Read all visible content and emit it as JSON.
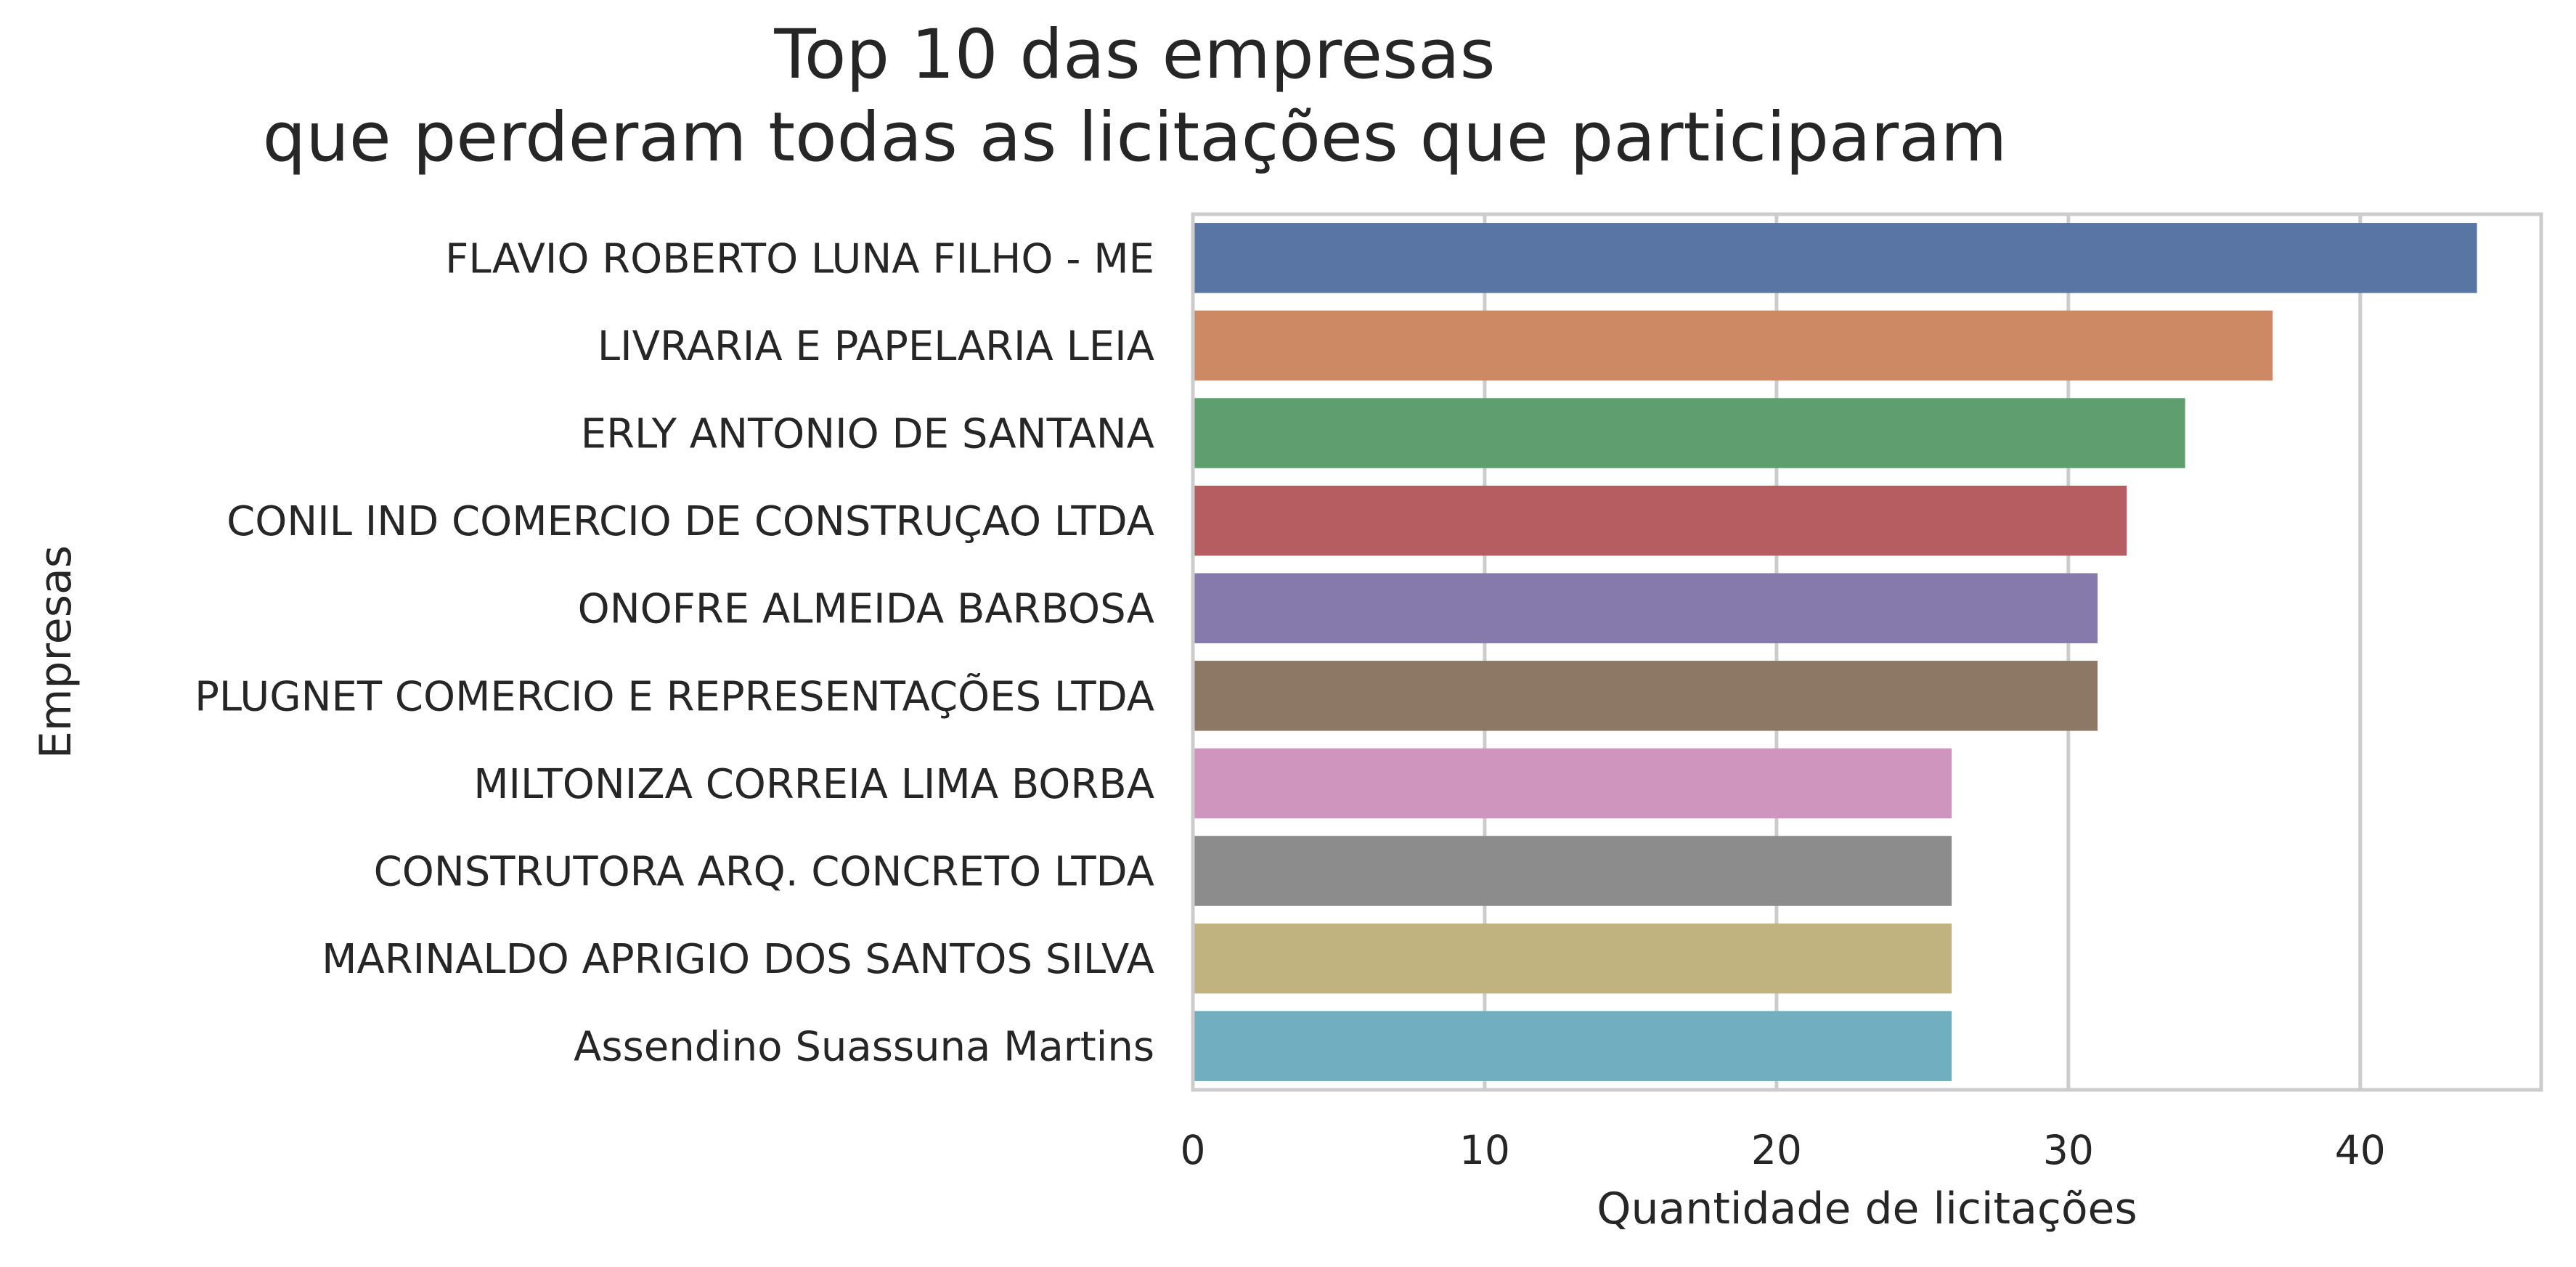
{
  "chart_data": {
    "type": "bar",
    "orientation": "horizontal",
    "title_lines": [
      "Top 10 das empresas",
      "que perderam todas as licitações que participaram"
    ],
    "xlabel": "Quantidade de licitações",
    "ylabel": "Empresas",
    "categories": [
      "FLAVIO ROBERTO LUNA FILHO - ME",
      "LIVRARIA E PAPELARIA LEIA",
      "ERLY ANTONIO DE SANTANA",
      "CONIL IND COMERCIO DE CONSTRUÇAO LTDA",
      "ONOFRE ALMEIDA BARBOSA",
      "PLUGNET COMERCIO E REPRESENTAÇÕES LTDA",
      "MILTONIZA CORREIA LIMA BORBA",
      "CONSTRUTORA ARQ. CONCRETO LTDA",
      "MARINALDO APRIGIO DOS SANTOS SILVA",
      "Assendino Suassuna Martins"
    ],
    "values": [
      44,
      37,
      34,
      32,
      31,
      31,
      26,
      26,
      26,
      26
    ],
    "colors": [
      "#5975a4",
      "#cc8963",
      "#5f9e6e",
      "#b55d60",
      "#857aab",
      "#8d7866",
      "#d095bf",
      "#8c8c8c",
      "#c1b37f",
      "#71aec0"
    ],
    "xlim": [
      0,
      46.2
    ],
    "xticks": [
      0,
      10,
      20,
      30,
      40
    ],
    "grid": true,
    "grid_axis": "x",
    "legend": false
  }
}
